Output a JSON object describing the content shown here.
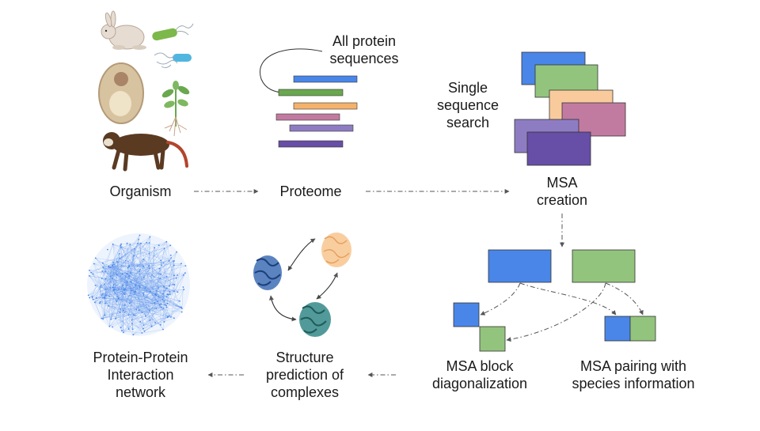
{
  "labels": {
    "organism": "Organism",
    "proteome": "Proteome",
    "all_protein_sequences": [
      "All protein",
      "sequences"
    ],
    "single_sequence_search": [
      "Single",
      "sequence",
      "search"
    ],
    "msa_creation": [
      "MSA",
      "creation"
    ],
    "msa_block_diagonalization": [
      "MSA block",
      "diagonalization"
    ],
    "msa_pairing": [
      "MSA pairing with",
      "species information"
    ],
    "structure_prediction": [
      "Structure",
      "prediction of",
      "complexes"
    ],
    "ppi_network": [
      "Protein-Protein",
      "Interaction",
      "network"
    ]
  },
  "colors": {
    "blue": "#4a86e8",
    "green": "#93c47d",
    "orange": "#f6b26b",
    "pink": "#c27ba0",
    "purple": "#8e7cc3",
    "dark_purple": "#674ea7",
    "light_orange": "#f9cb9c",
    "network": "#4a86e8",
    "arrow": "#555555"
  },
  "icons": [
    "rabbit-icon",
    "bacteria-icon",
    "plant-cell-icon",
    "plant-icon",
    "monkey-icon",
    "protein-structure-blue-icon",
    "protein-structure-orange-icon",
    "protein-structure-teal-icon",
    "network-icon"
  ]
}
